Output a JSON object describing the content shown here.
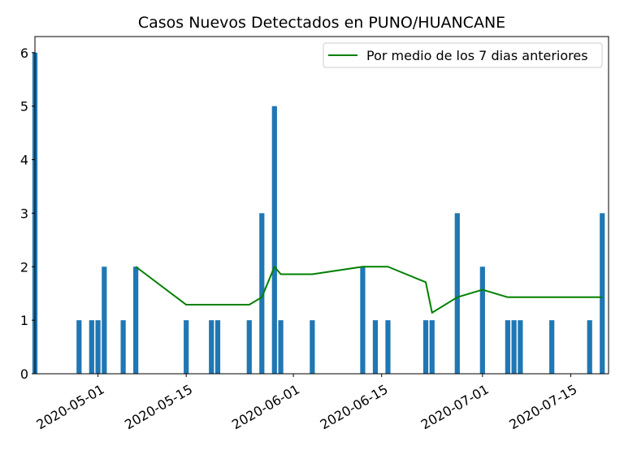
{
  "chart_data": {
    "type": "bar",
    "title": "Casos Nuevos Detectados en PUNO/HUANCANE",
    "xlabel": "",
    "ylabel": "",
    "x_range": [
      "2020-04-21",
      "2020-07-21"
    ],
    "ylim": [
      0,
      6.3
    ],
    "y_ticks": [
      0,
      1,
      2,
      3,
      4,
      5,
      6
    ],
    "x_ticks": [
      "2020-05-01",
      "2020-05-15",
      "2020-06-01",
      "2020-06-15",
      "2020-07-01",
      "2020-07-15"
    ],
    "grid": false,
    "legend_placement": "top-right",
    "bars": {
      "color": "#1f77b4",
      "points": [
        {
          "date": "2020-04-21",
          "value": 6
        },
        {
          "date": "2020-04-28",
          "value": 1
        },
        {
          "date": "2020-04-30",
          "value": 1
        },
        {
          "date": "2020-05-01",
          "value": 1
        },
        {
          "date": "2020-05-02",
          "value": 2
        },
        {
          "date": "2020-05-05",
          "value": 1
        },
        {
          "date": "2020-05-07",
          "value": 2
        },
        {
          "date": "2020-05-15",
          "value": 1
        },
        {
          "date": "2020-05-19",
          "value": 1
        },
        {
          "date": "2020-05-20",
          "value": 1
        },
        {
          "date": "2020-05-25",
          "value": 1
        },
        {
          "date": "2020-05-27",
          "value": 3
        },
        {
          "date": "2020-05-29",
          "value": 5
        },
        {
          "date": "2020-05-30",
          "value": 1
        },
        {
          "date": "2020-06-04",
          "value": 1
        },
        {
          "date": "2020-06-12",
          "value": 2
        },
        {
          "date": "2020-06-14",
          "value": 1
        },
        {
          "date": "2020-06-16",
          "value": 1
        },
        {
          "date": "2020-06-22",
          "value": 1
        },
        {
          "date": "2020-06-23",
          "value": 1
        },
        {
          "date": "2020-06-27",
          "value": 3
        },
        {
          "date": "2020-07-01",
          "value": 2
        },
        {
          "date": "2020-07-05",
          "value": 1
        },
        {
          "date": "2020-07-06",
          "value": 1
        },
        {
          "date": "2020-07-07",
          "value": 1
        },
        {
          "date": "2020-07-12",
          "value": 1
        },
        {
          "date": "2020-07-18",
          "value": 1
        },
        {
          "date": "2020-07-20",
          "value": 3
        }
      ]
    },
    "series": [
      {
        "name": "Por medio de los 7 dias anteriores",
        "color": "#008000",
        "points": [
          {
            "date": "2020-05-07",
            "value": 2.0
          },
          {
            "date": "2020-05-15",
            "value": 1.29
          },
          {
            "date": "2020-05-25",
            "value": 1.29
          },
          {
            "date": "2020-05-27",
            "value": 1.43
          },
          {
            "date": "2020-05-29",
            "value": 2.0
          },
          {
            "date": "2020-05-30",
            "value": 1.86
          },
          {
            "date": "2020-06-04",
            "value": 1.86
          },
          {
            "date": "2020-06-12",
            "value": 2.0
          },
          {
            "date": "2020-06-16",
            "value": 2.0
          },
          {
            "date": "2020-06-22",
            "value": 1.71
          },
          {
            "date": "2020-06-23",
            "value": 1.14
          },
          {
            "date": "2020-06-27",
            "value": 1.43
          },
          {
            "date": "2020-07-01",
            "value": 1.57
          },
          {
            "date": "2020-07-05",
            "value": 1.43
          },
          {
            "date": "2020-07-20",
            "value": 1.43
          }
        ]
      }
    ]
  }
}
